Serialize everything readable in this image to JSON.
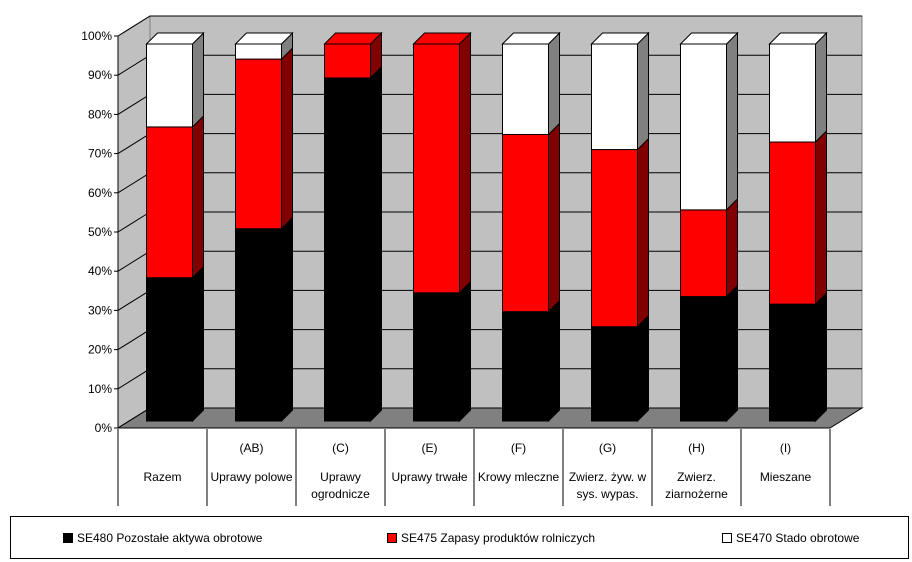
{
  "chart_data": {
    "type": "bar",
    "stacked": true,
    "percent": true,
    "three_d": true,
    "categories": [
      [
        "",
        "Razem"
      ],
      [
        "(AB)",
        "Uprawy polowe"
      ],
      [
        "(C)",
        "Uprawy",
        "ogrodnicze"
      ],
      [
        "(E)",
        "Uprawy trwałe"
      ],
      [
        "(F)",
        "Krowy mleczne"
      ],
      [
        "(G)",
        "Zwierz. żyw. w",
        "sys. wypas."
      ],
      [
        "(H)",
        "Zwierz.",
        "ziarnożerne"
      ],
      [
        "(I)",
        "Mieszane"
      ]
    ],
    "series": [
      {
        "name": "SE480 Pozostałe aktywa obrotowe",
        "color": "#000000",
        "side": "#000000",
        "values": [
          38,
          51,
          91,
          34,
          29,
          25,
          33,
          31
        ]
      },
      {
        "name": "SE475 Zapasy produktów rolniczych",
        "color": "#ff0000",
        "side": "#800000",
        "values": [
          40,
          45,
          9,
          66,
          47,
          47,
          23,
          43
        ]
      },
      {
        "name": "SE470 Stado obrotowe",
        "color": "#ffffff",
        "side": "#808080",
        "values": [
          22,
          4,
          0,
          0,
          24,
          28,
          44,
          26
        ]
      }
    ],
    "yticks": [
      "0%",
      "10%",
      "20%",
      "30%",
      "40%",
      "50%",
      "60%",
      "70%",
      "80%",
      "90%",
      "100%"
    ],
    "ylim": [
      0,
      100
    ],
    "grid": true,
    "legend_position": "bottom",
    "wall_color": "#c0c0c0",
    "floor_color": "#808080"
  }
}
